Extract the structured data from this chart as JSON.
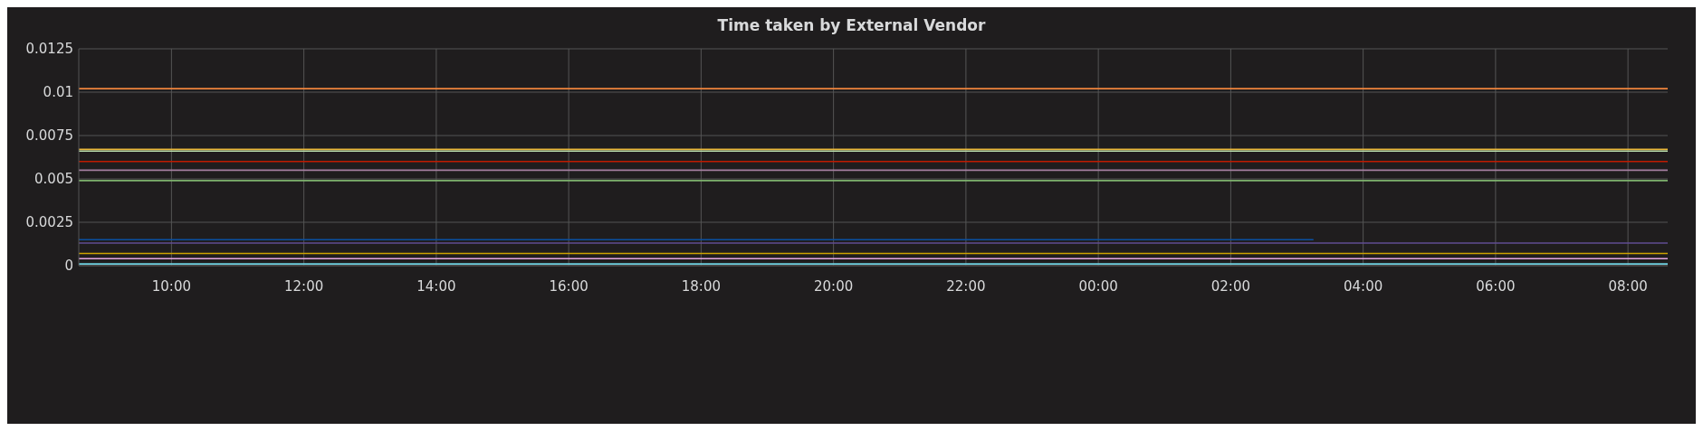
{
  "chart_data": {
    "type": "line",
    "title": "Time taken by External Vendor",
    "xlim": [
      "2000-01-01T08:36",
      "2000-01-02T08:36"
    ],
    "ylim": [
      0,
      0.0125
    ],
    "xticks": [
      {
        "value": "2000-01-01T10:00",
        "label": "10:00"
      },
      {
        "value": "2000-01-01T12:00",
        "label": "12:00"
      },
      {
        "value": "2000-01-01T14:00",
        "label": "14:00"
      },
      {
        "value": "2000-01-01T16:00",
        "label": "16:00"
      },
      {
        "value": "2000-01-01T18:00",
        "label": "18:00"
      },
      {
        "value": "2000-01-01T20:00",
        "label": "20:00"
      },
      {
        "value": "2000-01-01T22:00",
        "label": "22:00"
      },
      {
        "value": "2000-01-02T00:00",
        "label": "00:00"
      },
      {
        "value": "2000-01-02T02:00",
        "label": "02:00"
      },
      {
        "value": "2000-01-02T04:00",
        "label": "04:00"
      },
      {
        "value": "2000-01-02T06:00",
        "label": "06:00"
      },
      {
        "value": "2000-01-02T08:00",
        "label": "08:00"
      }
    ],
    "yticks": [
      0,
      0.0025,
      0.005,
      0.0075,
      0.01,
      0.0125
    ],
    "grid": true,
    "series": [
      {
        "color": "#ef843c",
        "x": [
          "2000-01-01T08:36",
          "2000-01-02T08:36"
        ],
        "values": [
          0.0102,
          0.0102
        ]
      },
      {
        "color": "#eab839",
        "x": [
          "2000-01-01T08:36",
          "2000-01-02T08:36"
        ],
        "values": [
          0.0067,
          0.0067
        ]
      },
      {
        "color": "#b7dbab",
        "x": [
          "2000-01-01T08:36",
          "2000-01-02T08:36"
        ],
        "values": [
          0.0066,
          0.0066
        ]
      },
      {
        "color": "#bf1b00",
        "x": [
          "2000-01-01T08:36",
          "2000-01-02T08:36"
        ],
        "values": [
          0.006,
          0.006
        ]
      },
      {
        "color": "#a47fa0",
        "x": [
          "2000-01-01T08:36",
          "2000-01-02T08:36"
        ],
        "values": [
          0.0055,
          0.0055
        ]
      },
      {
        "color": "#7eb26d",
        "x": [
          "2000-01-01T08:36",
          "2000-01-02T08:36"
        ],
        "values": [
          0.0049,
          0.0049
        ]
      },
      {
        "color": "#614d93",
        "x": [
          "2000-01-01T08:36",
          "2000-01-02T08:36"
        ],
        "values": [
          0.0013,
          0.0013
        ]
      },
      {
        "color": "#0a50a1",
        "x": [
          "2000-01-01T08:36",
          "2000-01-02T03:15"
        ],
        "values": [
          0.0015,
          0.0015
        ]
      },
      {
        "color": "#cca300",
        "x": [
          "2000-01-01T08:36",
          "2000-01-02T08:36"
        ],
        "values": [
          0.0007,
          0.0007
        ]
      },
      {
        "color": "#e5a8e2",
        "x": [
          "2000-01-01T08:36",
          "2000-01-02T08:36"
        ],
        "values": [
          0.0004,
          0.0004
        ]
      },
      {
        "color": "#6ed0e0",
        "x": [
          "2000-01-01T08:36",
          "2000-01-02T08:36"
        ],
        "values": [
          0.0001,
          0.0001
        ]
      }
    ]
  }
}
